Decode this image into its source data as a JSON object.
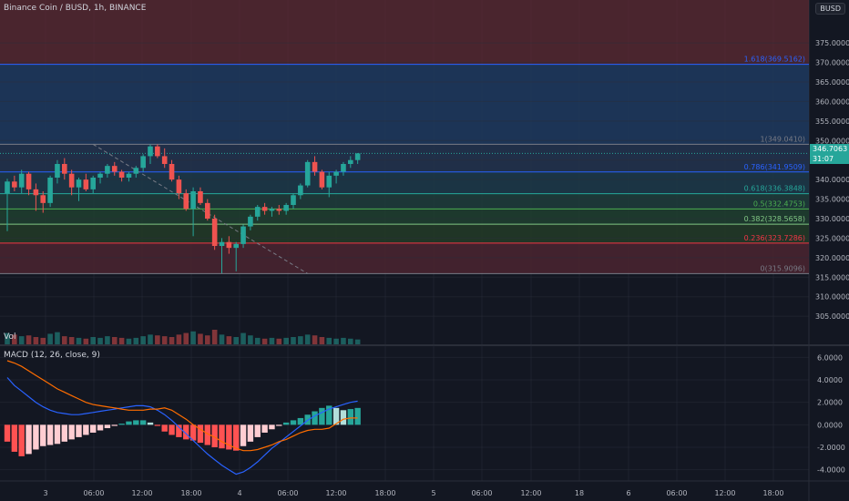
{
  "title": "Binance Coin / BUSD, 1h, BINANCE",
  "currency": "BUSD",
  "vol_label": "Vol",
  "macd_label": "MACD (12, 26, close, 9)",
  "last_price": "346.7063",
  "countdown": "31:07",
  "colors": {
    "up": "#26a69a",
    "down": "#ef5350",
    "macd": "#2962ff",
    "signal": "#ff6d00"
  },
  "chart_data": [
    {
      "type": "candlestick",
      "title": "Binance Coin / BUSD, 1h, BINANCE",
      "ylim": [
        302,
        386
      ],
      "price_ticks": [
        "375.0000",
        "370.0000",
        "365.0000",
        "360.0000",
        "355.0000",
        "350.0000",
        "345.0000",
        "340.0000",
        "335.0000",
        "330.0000",
        "325.0000",
        "320.0000",
        "315.0000",
        "310.0000",
        "305.0000"
      ],
      "x_ticks": [
        "3",
        "06:00",
        "12:00",
        "18:00",
        "4",
        "06:00",
        "12:00",
        "18:00",
        "5",
        "06:00",
        "12:00",
        "18",
        "6",
        "06:00",
        "12:00",
        "18:00"
      ],
      "fib_levels": [
        {
          "label": "1.618(369.5162)",
          "ratio": 1.618,
          "price": 369.5162,
          "color": "#2962ff"
        },
        {
          "label": "1(349.0410)",
          "ratio": 1,
          "price": 349.041,
          "color": "#787b86"
        },
        {
          "label": "0.786(341.9509)",
          "ratio": 0.786,
          "price": 341.9509,
          "color": "#2962ff"
        },
        {
          "label": "0.618(336.3848)",
          "ratio": 0.618,
          "price": 336.3848,
          "color": "#26a69a"
        },
        {
          "label": "0.5(332.4753)",
          "ratio": 0.5,
          "price": 332.4753,
          "color": "#4caf50"
        },
        {
          "label": "0.382(328.5658)",
          "ratio": 0.382,
          "price": 328.5658,
          "color": "#81c784"
        },
        {
          "label": "0.236(323.7286)",
          "ratio": 0.236,
          "price": 323.7286,
          "color": "#f23645"
        },
        {
          "label": "0(315.9096)",
          "ratio": 0,
          "price": 315.9096,
          "color": "#787b86"
        }
      ],
      "candles": [
        [
          336.5,
          340.2,
          326.8,
          339.5
        ],
        [
          339.5,
          341.0,
          337.0,
          338.0
        ],
        [
          338.0,
          342.5,
          336.5,
          341.5
        ],
        [
          341.5,
          342.0,
          336.0,
          337.5
        ],
        [
          337.5,
          339.0,
          332.0,
          336.0
        ],
        [
          336.0,
          337.0,
          331.5,
          334.0
        ],
        [
          334.0,
          341.0,
          333.0,
          340.5
        ],
        [
          340.5,
          345.0,
          339.0,
          344.0
        ],
        [
          344.0,
          345.5,
          340.0,
          341.5
        ],
        [
          341.5,
          342.5,
          336.0,
          338.0
        ],
        [
          338.0,
          340.5,
          334.5,
          340.0
        ],
        [
          340.0,
          341.5,
          337.0,
          337.5
        ],
        [
          337.5,
          341.0,
          336.5,
          340.5
        ],
        [
          340.5,
          342.0,
          339.0,
          341.5
        ],
        [
          341.5,
          344.0,
          340.5,
          343.5
        ],
        [
          343.5,
          344.5,
          341.0,
          342.0
        ],
        [
          342.0,
          342.5,
          339.5,
          340.5
        ],
        [
          340.5,
          342.0,
          339.5,
          341.5
        ],
        [
          341.5,
          343.5,
          340.5,
          343.0
        ],
        [
          343.0,
          346.5,
          342.0,
          346.0
        ],
        [
          346.0,
          349.0,
          344.0,
          348.5
        ],
        [
          348.5,
          349.0,
          345.5,
          346.0
        ],
        [
          346.0,
          348.0,
          343.0,
          344.0
        ],
        [
          344.0,
          345.0,
          339.5,
          340.0
        ],
        [
          340.0,
          341.0,
          335.0,
          336.5
        ],
        [
          336.5,
          337.5,
          332.0,
          332.5
        ],
        [
          332.5,
          338.0,
          325.5,
          337.0
        ],
        [
          337.0,
          338.0,
          333.5,
          334.0
        ],
        [
          334.0,
          335.0,
          329.5,
          330.0
        ],
        [
          330.0,
          331.0,
          322.0,
          323.0
        ],
        [
          323.0,
          325.0,
          316.0,
          324.0
        ],
        [
          324.0,
          325.5,
          321.0,
          322.5
        ],
        [
          322.5,
          324.0,
          316.5,
          323.5
        ],
        [
          323.5,
          328.5,
          322.5,
          328.0
        ],
        [
          328.0,
          331.0,
          327.0,
          330.5
        ],
        [
          330.5,
          333.5,
          329.5,
          333.0
        ],
        [
          333.0,
          334.0,
          331.0,
          332.0
        ],
        [
          332.0,
          333.0,
          330.5,
          332.5
        ],
        [
          332.5,
          333.5,
          331.0,
          332.0
        ],
        [
          332.0,
          334.0,
          331.0,
          333.5
        ],
        [
          333.5,
          336.5,
          332.5,
          336.0
        ],
        [
          336.0,
          339.0,
          335.0,
          338.5
        ],
        [
          338.5,
          345.0,
          338.0,
          344.5
        ],
        [
          344.5,
          346.0,
          341.0,
          342.0
        ],
        [
          342.0,
          342.5,
          337.5,
          338.0
        ],
        [
          338.0,
          342.0,
          335.5,
          341.0
        ],
        [
          341.0,
          342.5,
          339.0,
          342.0
        ],
        [
          342.0,
          344.5,
          341.0,
          344.0
        ],
        [
          344.0,
          346.0,
          343.0,
          345.0
        ],
        [
          345.0,
          346.8,
          344.0,
          346.7
        ]
      ]
    },
    {
      "type": "bar",
      "title": "Vol",
      "values": [
        14,
        12,
        10,
        11,
        9,
        8,
        13,
        15,
        10,
        9,
        8,
        7,
        9,
        8,
        10,
        9,
        8,
        7,
        8,
        10,
        12,
        11,
        10,
        9,
        12,
        14,
        16,
        13,
        11,
        18,
        12,
        10,
        9,
        14,
        11,
        8,
        7,
        8,
        7,
        8,
        9,
        10,
        12,
        11,
        9,
        8,
        7,
        8,
        7,
        6
      ]
    },
    {
      "type": "bar",
      "title": "MACD (12, 26, close, 9)",
      "ylim": [
        -5,
        7
      ],
      "yticks": [
        "6.0000",
        "4.0000",
        "2.0000",
        "0.0000",
        "-2.0000",
        "-4.0000"
      ],
      "histogram": [
        -1.5,
        -2.4,
        -2.8,
        -2.6,
        -2.2,
        -1.9,
        -1.8,
        -1.7,
        -1.5,
        -1.3,
        -1.1,
        -0.9,
        -0.7,
        -0.5,
        -0.3,
        -0.1,
        0.1,
        0.3,
        0.4,
        0.4,
        0.2,
        -0.1,
        -0.6,
        -0.9,
        -1.1,
        -1.3,
        -1.4,
        -1.6,
        -1.8,
        -2.0,
        -2.1,
        -2.2,
        -2.3,
        -1.9,
        -1.5,
        -1.1,
        -0.7,
        -0.4,
        -0.1,
        0.2,
        0.4,
        0.6,
        0.9,
        1.2,
        1.5,
        1.7,
        1.5,
        1.3,
        1.4,
        1.5
      ],
      "series": [
        {
          "values": [
            4.2,
            3.5,
            3.0,
            2.5,
            2.0,
            1.6,
            1.3,
            1.1,
            1.0,
            0.9,
            0.9,
            1.0,
            1.1,
            1.2,
            1.3,
            1.4,
            1.5,
            1.6,
            1.7,
            1.7,
            1.6,
            1.3,
            0.9,
            0.4,
            -0.2,
            -0.8,
            -1.4,
            -2.0,
            -2.6,
            -3.1,
            -3.6,
            -4.0,
            -4.4,
            -4.2,
            -3.8,
            -3.3,
            -2.7,
            -2.1,
            -1.6,
            -1.1,
            -0.6,
            -0.1,
            0.4,
            0.8,
            1.1,
            1.4,
            1.6,
            1.8,
            2.0,
            2.1
          ]
        },
        {
          "values": [
            5.7,
            5.5,
            5.2,
            4.8,
            4.4,
            4.0,
            3.6,
            3.2,
            2.9,
            2.6,
            2.3,
            2.0,
            1.8,
            1.7,
            1.6,
            1.5,
            1.4,
            1.3,
            1.3,
            1.3,
            1.4,
            1.4,
            1.5,
            1.3,
            0.9,
            0.5,
            0.0,
            -0.4,
            -0.8,
            -1.1,
            -1.5,
            -1.8,
            -2.1,
            -2.3,
            -2.3,
            -2.2,
            -2.0,
            -1.8,
            -1.5,
            -1.3,
            -1.0,
            -0.7,
            -0.5,
            -0.4,
            -0.4,
            -0.3,
            0.1,
            0.5,
            0.6,
            0.6
          ]
        }
      ]
    }
  ]
}
